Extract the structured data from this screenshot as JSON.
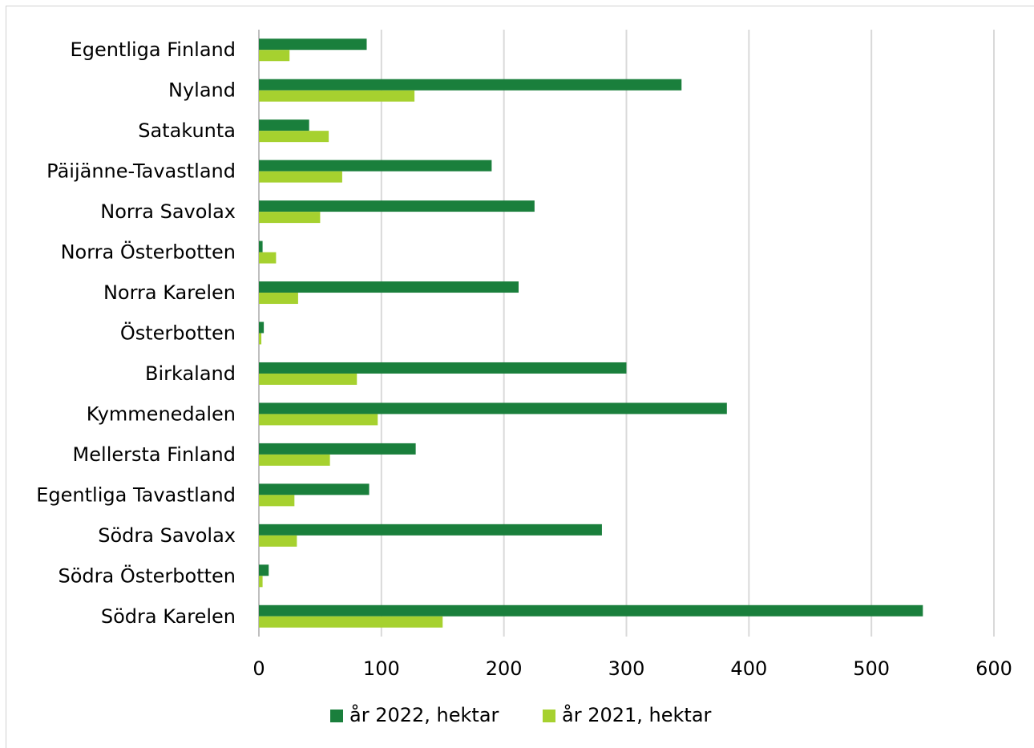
{
  "chart_data": {
    "type": "bar",
    "orientation": "horizontal",
    "categories": [
      "Egentliga Finland",
      "Nyland",
      "Satakunta",
      "Päijänne-Tavastland",
      "Norra Savolax",
      "Norra Österbotten",
      "Norra Karelen",
      "Österbotten",
      "Birkaland",
      "Kymmenedalen",
      "Mellersta Finland",
      "Egentliga Tavastland",
      "Södra Savolax",
      "Södra Österbotten",
      "Södra Karelen"
    ],
    "series": [
      {
        "name": "år 2022, hektar",
        "color": "#1a7f3c",
        "values": [
          88,
          345,
          41,
          190,
          225,
          3,
          212,
          4,
          300,
          382,
          128,
          90,
          280,
          8,
          542
        ]
      },
      {
        "name": "år 2021, hektar",
        "color": "#a6d12f",
        "values": [
          25,
          127,
          57,
          68,
          50,
          14,
          32,
          2,
          80,
          97,
          58,
          29,
          31,
          3,
          150
        ]
      }
    ],
    "xlim": [
      0,
      600
    ],
    "xticks": [
      "0",
      "100",
      "200",
      "300",
      "400",
      "500",
      "600"
    ],
    "grid": true,
    "legend": "bottom",
    "xlabel": "",
    "ylabel": ""
  }
}
